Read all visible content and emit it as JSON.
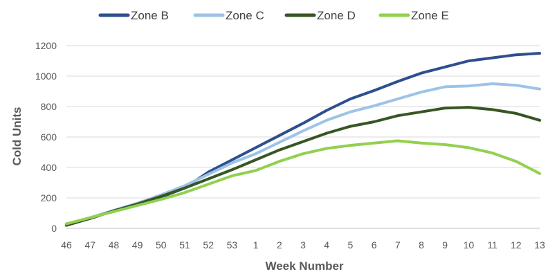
{
  "chart_data": {
    "type": "line",
    "title": "",
    "xlabel": "Week Number",
    "ylabel": "Cold Units",
    "categories": [
      "46",
      "47",
      "48",
      "49",
      "50",
      "51",
      "52",
      "53",
      "1",
      "2",
      "3",
      "4",
      "5",
      "6",
      "7",
      "8",
      "9",
      "10",
      "11",
      "12",
      "13"
    ],
    "ylim": [
      0,
      1200
    ],
    "yticks": [
      0,
      200,
      400,
      600,
      800,
      1000,
      1200
    ],
    "grid": true,
    "legend_position": "top",
    "series": [
      {
        "name": "Zone B",
        "color": "#2e4f8f",
        "values": [
          20,
          65,
          115,
          160,
          205,
          265,
          370,
          450,
          530,
          610,
          690,
          775,
          850,
          905,
          965,
          1020,
          1060,
          1100,
          1120,
          1140,
          1150
        ]
      },
      {
        "name": "Zone C",
        "color": "#9dc3e6",
        "values": [
          28,
          70,
          118,
          165,
          220,
          280,
          355,
          430,
          490,
          565,
          640,
          710,
          765,
          805,
          850,
          895,
          930,
          935,
          950,
          940,
          915
        ]
      },
      {
        "name": "Zone D",
        "color": "#375623",
        "values": [
          20,
          65,
          115,
          160,
          210,
          265,
          325,
          385,
          450,
          515,
          570,
          625,
          670,
          700,
          740,
          765,
          790,
          795,
          780,
          755,
          710
        ]
      },
      {
        "name": "Zone E",
        "color": "#92d050",
        "values": [
          30,
          70,
          110,
          150,
          190,
          235,
          290,
          345,
          380,
          440,
          490,
          525,
          545,
          560,
          575,
          560,
          550,
          530,
          495,
          440,
          360
        ]
      }
    ]
  }
}
